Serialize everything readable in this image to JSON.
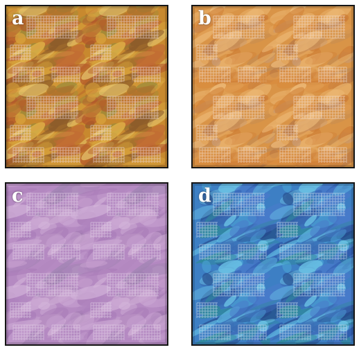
{
  "panels": [
    {
      "label": "a",
      "base": "#c8892e",
      "palette": [
        "#b3562a",
        "#d8a23c",
        "#a7752e",
        "#e0b348",
        "#8a5a2a",
        "#c06a34",
        "#9a8a3a",
        "#e6c36a"
      ],
      "grid_color": "#f2e0ea"
    },
    {
      "label": "b",
      "base": "#d99447",
      "palette": [
        "#cf7f37",
        "#e2a257",
        "#c08a54",
        "#e8b06a",
        "#b97a46",
        "#d98a3c",
        "#c99a70",
        "#efbd7c"
      ],
      "grid_color": "#f5e4dc"
    },
    {
      "label": "c",
      "base": "#b58ac2",
      "palette": [
        "#a97cb8",
        "#c29bcc",
        "#9e78ad",
        "#cba6d3",
        "#b287c0",
        "#a084b2",
        "#c4a0cc",
        "#d2b2d8"
      ],
      "grid_color": "#e6d6ea"
    },
    {
      "label": "d",
      "base": "#3d7fc4",
      "palette": [
        "#2a55a8",
        "#4da8d8",
        "#264c8e",
        "#5fb8e0",
        "#3a6cb4",
        "#2f8a9a",
        "#4a7acb",
        "#6cc4e6"
      ],
      "grid_color": "#d6e4f2"
    }
  ]
}
